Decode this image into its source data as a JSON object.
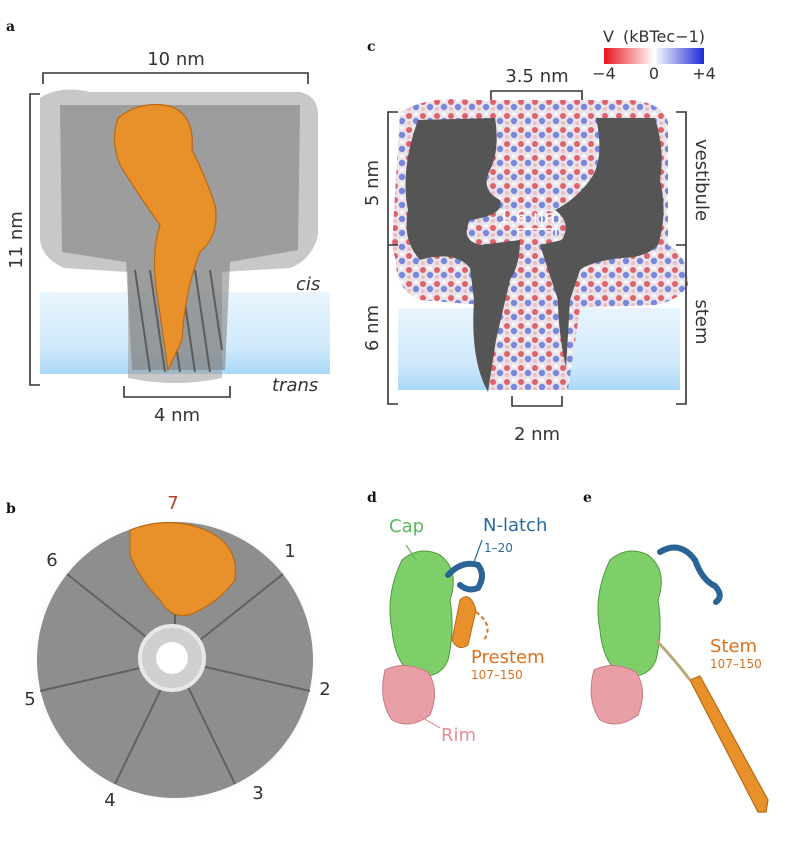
{
  "panels": {
    "a": {
      "letter": "a",
      "width_label": "10 nm",
      "height_label": "11 nm",
      "bottom_label": "4 nm",
      "cis_label": "cis",
      "trans_label": "trans"
    },
    "b": {
      "letter": "b",
      "subunits": [
        "1",
        "2",
        "3",
        "4",
        "5",
        "6",
        "7"
      ],
      "highlight_index": 6,
      "highlight_color": "#c0392b"
    },
    "c": {
      "letter": "c",
      "top_label": "3.5 nm",
      "constriction_label": "1.6 nm",
      "bottom_label": "2 nm",
      "upper_height_label": "5 nm",
      "lower_height_label": "6 nm",
      "vestibule_label": "vestibule",
      "stem_label": "stem",
      "colorbar": {
        "title_prefix": "V",
        "title_units": "(kBTec−1)",
        "min_label": "−4",
        "mid_label": "0",
        "max_label": "+4",
        "min_color": "#e8141b",
        "mid_color": "#ffffff",
        "max_color": "#1f2ad6"
      }
    },
    "d": {
      "letter": "d",
      "cap_label": "Cap",
      "nlatch_label": "N-latch",
      "nlatch_range": "1–20",
      "prestem_label": "Prestem",
      "prestem_range": "107–150",
      "rim_label": "Rim"
    },
    "e": {
      "letter": "e",
      "stem_label": "Stem",
      "stem_range": "107–150"
    }
  },
  "colors": {
    "protein_gray": "#6b6b6b",
    "highlight_orange": "#e8902a",
    "cap_green": "#7ecf6a",
    "nlatch_blue": "#2a6496",
    "rim_pink": "#e8a0a6",
    "membrane_blue": "#cde8fb",
    "label_green": "#5cb85c",
    "label_blue": "#2a6aa0",
    "label_orange": "#d9711c",
    "label_pink": "#e58f98"
  }
}
